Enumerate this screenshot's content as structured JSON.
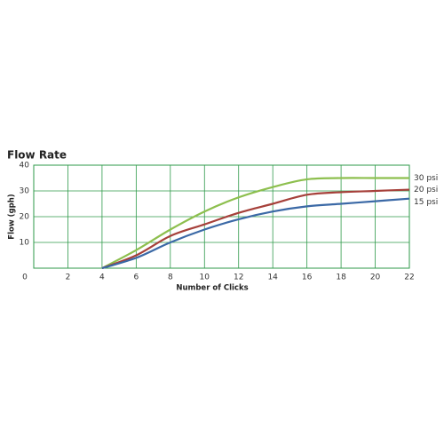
{
  "chart_data": {
    "type": "line",
    "title": "Flow Rate",
    "x_label": "Number of Clicks",
    "y_label": "Flow (gph)",
    "x": [
      4,
      6,
      8,
      10,
      12,
      14,
      16,
      18,
      20,
      22
    ],
    "series": [
      {
        "name": "30 psi",
        "color": "#8dbf4e",
        "values": [
          0,
          7,
          15,
          22,
          27.5,
          31.5,
          34.5,
          35,
          35,
          35
        ]
      },
      {
        "name": "20 psi",
        "color": "#a6403a",
        "values": [
          0,
          5,
          12.5,
          17,
          21.5,
          25,
          28.5,
          29.5,
          30,
          30.5
        ]
      },
      {
        "name": "15 psi",
        "color": "#3b69a6",
        "values": [
          0,
          4,
          10,
          15,
          19,
          22,
          24,
          25,
          26,
          27
        ]
      }
    ],
    "xlim": [
      0,
      22
    ],
    "ylim": [
      0,
      40
    ],
    "xticks": [
      0,
      2,
      4,
      6,
      8,
      10,
      12,
      14,
      16,
      18,
      20,
      22
    ],
    "yticks": [
      10,
      20,
      30,
      40
    ],
    "grid": true
  }
}
